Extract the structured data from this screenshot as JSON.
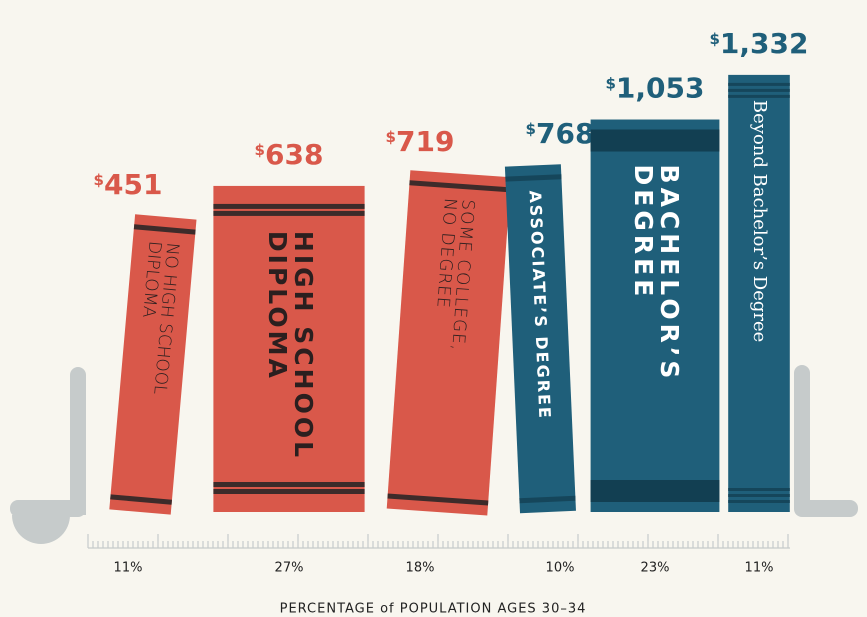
{
  "chart_data": {
    "type": "book-bar",
    "categories": [
      [
        "NO HIGH SCHOOL",
        "DIPLOMA"
      ],
      [
        "HIGH SCHOOL",
        "DIPLOMA"
      ],
      [
        "SOME COLLEGE,",
        "NO DEGREE"
      ],
      [
        "ASSOCIATE’S DEGREE"
      ],
      [
        "BACHELOR’S",
        "DEGREE"
      ],
      [
        "Beyond Bachelor’s Degree"
      ]
    ],
    "values": [
      451,
      638,
      719,
      768,
      1053,
      1332
    ],
    "value_labels": [
      "$451",
      "$638",
      "$719",
      "$768",
      "$1,053",
      "$1,332"
    ],
    "shares": [
      11,
      27,
      18,
      10,
      23,
      11
    ],
    "share_labels": [
      "11%",
      "27%",
      "18%",
      "10%",
      "23%",
      "11%"
    ],
    "colors": [
      "#d9584a",
      "#d9584a",
      "#d9584a",
      "#1f5f7a",
      "#1f5f7a",
      "#1f5f7a"
    ],
    "ylim": [
      -1400,
      1400
    ],
    "xlabel": "PERCENTAGE of POPULATION AGES 30–34"
  }
}
